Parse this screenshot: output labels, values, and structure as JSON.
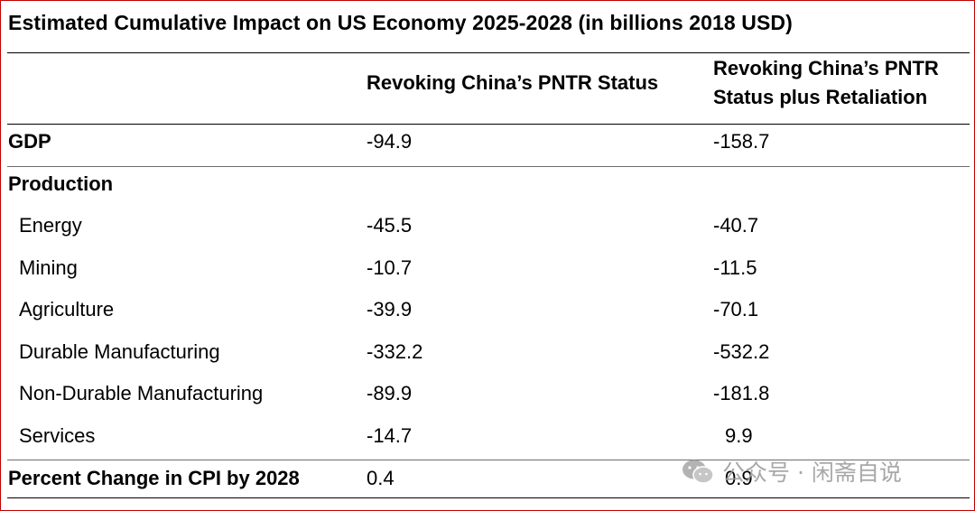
{
  "title": "Estimated Cumulative Impact on US Economy 2025-2028 (in billions 2018 USD)",
  "columns": {
    "col1": "Revoking China’s PNTR Status",
    "col2_line1": "Revoking China’s PNTR",
    "col2_line2": "Status plus Retaliation"
  },
  "rows": [
    {
      "label": "GDP",
      "v1": "-94.9",
      "v2": "-158.7"
    },
    {
      "label": "Production",
      "v1": "",
      "v2": ""
    },
    {
      "label": "Energy",
      "v1": "-45.5",
      "v2": "-40.7"
    },
    {
      "label": "Mining",
      "v1": "-10.7",
      "v2": "-11.5"
    },
    {
      "label": "Agriculture",
      "v1": "-39.9",
      "v2": "-70.1"
    },
    {
      "label": "Durable Manufacturing",
      "v1": "-332.2",
      "v2": "-532.2"
    },
    {
      "label": "Non-Durable Manufacturing",
      "v1": "-89.9",
      "v2": "-181.8"
    },
    {
      "label": "Services",
      "v1": "-14.7",
      "v2": "9.9"
    },
    {
      "label": "Percent Change in CPI by 2028",
      "v1": "0.4",
      "v2": "0.9"
    }
  ],
  "watermark": {
    "text": "公众号 · 闲斋自说",
    "icon": "wechat-icon"
  }
}
